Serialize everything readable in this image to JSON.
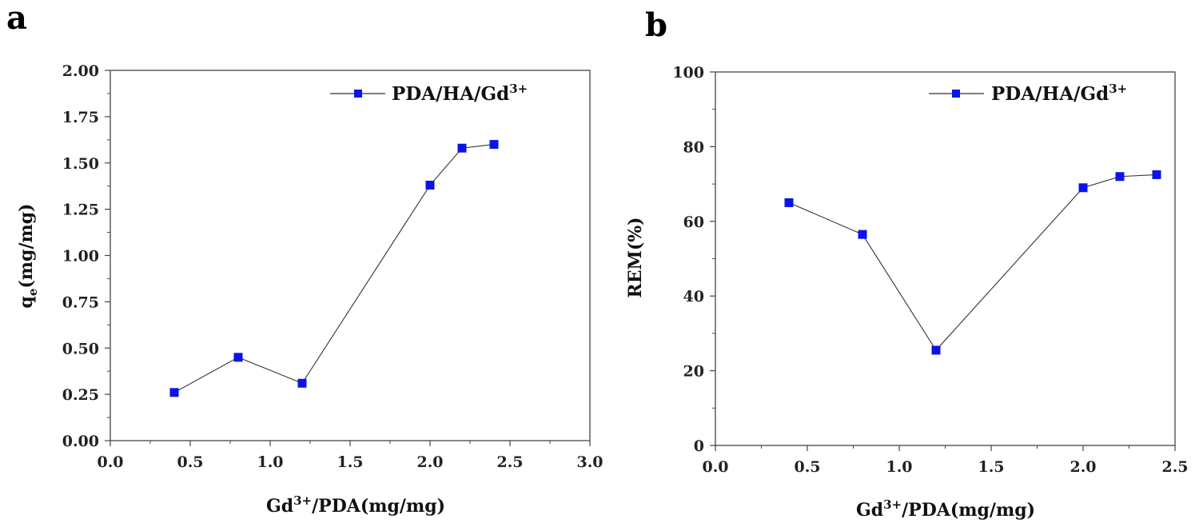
{
  "chart_data": [
    {
      "panel_label": "a",
      "type": "line",
      "x": [
        0.4,
        0.8,
        1.2,
        2.0,
        2.2,
        2.4
      ],
      "series": [
        {
          "name": "PDA/HA/Gd",
          "name_sup": "3+",
          "values": [
            0.26,
            0.45,
            0.31,
            1.38,
            1.58,
            1.6
          ]
        }
      ],
      "xlabel": {
        "base": "Gd",
        "sup": "3+",
        "rest": "/PDA(mg/mg)"
      },
      "ylabel": {
        "base": "q",
        "sub": "e",
        "rest": "(mg/mg)"
      },
      "xlim": [
        0.0,
        3.0
      ],
      "ylim": [
        0.0,
        2.0
      ],
      "xticks": [
        "0.0",
        "0.5",
        "1.0",
        "1.5",
        "2.0",
        "2.5",
        "3.0"
      ],
      "yticks": [
        "0.00",
        "0.25",
        "0.50",
        "0.75",
        "1.00",
        "1.25",
        "1.50",
        "1.75",
        "2.00"
      ],
      "legend_position": "top-right",
      "grid": false,
      "marker": "square",
      "marker_color": "#0a14e6",
      "line_color": "#333333"
    },
    {
      "panel_label": "b",
      "type": "line",
      "x": [
        0.4,
        0.8,
        1.2,
        2.0,
        2.2,
        2.4
      ],
      "series": [
        {
          "name": "PDA/HA/Gd",
          "name_sup": "3+",
          "values": [
            65,
            56.5,
            25.5,
            69,
            72,
            72.5
          ]
        }
      ],
      "xlabel": {
        "base": "Gd",
        "sup": "3+",
        "rest": "/PDA(mg/mg)"
      },
      "ylabel": {
        "base": "REM(%)",
        "sub": "",
        "rest": ""
      },
      "xlim": [
        0.0,
        2.5
      ],
      "ylim": [
        0,
        100
      ],
      "xticks": [
        "0.0",
        "0.5",
        "1.0",
        "1.5",
        "2.0",
        "2.5"
      ],
      "yticks": [
        "0",
        "20",
        "40",
        "60",
        "80",
        "100"
      ],
      "legend_position": "top-right",
      "grid": false,
      "marker": "square",
      "marker_color": "#0a14e6",
      "line_color": "#333333"
    }
  ]
}
